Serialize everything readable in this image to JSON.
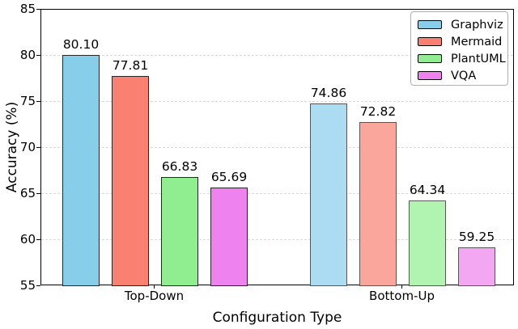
{
  "chart_data": {
    "type": "bar",
    "title": "",
    "xlabel": "Configuration Type",
    "ylabel": "Accuracy (%)",
    "categories": [
      "Top-Down",
      "Bottom-Up"
    ],
    "series": [
      {
        "name": "Graphviz",
        "color": "#87CEEB",
        "color_faded": "#ABDCF1",
        "values": [
          80.1,
          74.86
        ]
      },
      {
        "name": "Mermaid",
        "color": "#FA8072",
        "color_faded": "#FBA69C",
        "values": [
          77.81,
          72.82
        ]
      },
      {
        "name": "PlantUML",
        "color": "#90EE90",
        "color_faded": "#B1F3B1",
        "values": [
          66.83,
          64.34
        ]
      },
      {
        "name": "VQA",
        "color": "#EE82EE",
        "color_faded": "#F3A7F3",
        "values": [
          65.69,
          59.25
        ]
      }
    ],
    "ylim": [
      55,
      85
    ],
    "yticks": [
      55,
      60,
      65,
      70,
      75,
      80,
      85
    ],
    "grid_values": [
      60,
      65,
      70,
      75,
      80
    ],
    "grid_style": "dashed",
    "legend_position": "upper right",
    "faded_category_index": 1,
    "bar_edge_color": "#262626",
    "bar_edge_color_faded": "#565656",
    "value_label_decimals": 2
  }
}
